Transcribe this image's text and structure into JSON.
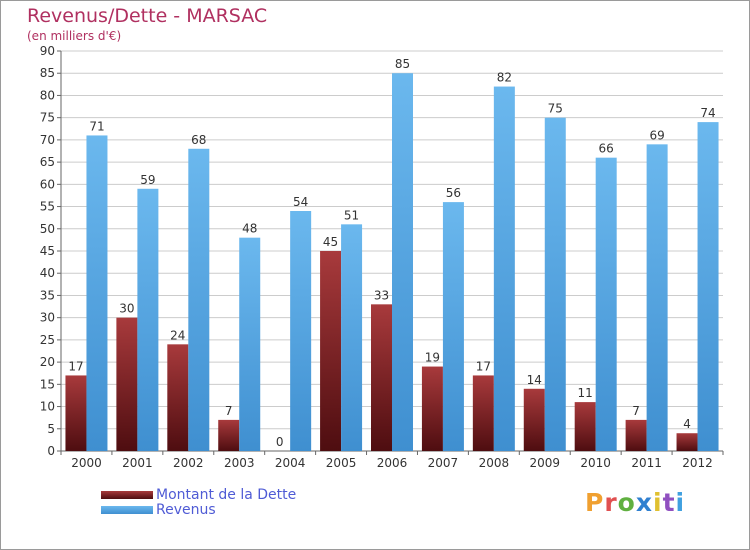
{
  "title": "Revenus/Dette - MARSAC",
  "subtitle": "(en milliers d'€)",
  "logo": {
    "text": "Proxiti",
    "letter_colors": [
      "#f0a030",
      "#e05050",
      "#60b040",
      "#3080d0",
      "#e0c030",
      "#9050c0",
      "#40a0e0"
    ]
  },
  "colors": {
    "dette": "#7a1e20",
    "revenus": "#55a8e6",
    "grid": "#cccccc",
    "axis": "#666666",
    "title": "#b03060"
  },
  "chart_data": {
    "type": "bar",
    "title": "Revenus/Dette - MARSAC",
    "subtitle": "(en milliers d'€)",
    "categories": [
      "2000",
      "2001",
      "2002",
      "2003",
      "2004",
      "2005",
      "2006",
      "2007",
      "2008",
      "2009",
      "2010",
      "2011",
      "2012"
    ],
    "series": [
      {
        "name": "Montant de la Dette",
        "color": "#7a1e20",
        "values": [
          17,
          30,
          24,
          7,
          0,
          45,
          33,
          19,
          17,
          14,
          11,
          7,
          4
        ]
      },
      {
        "name": "Revenus",
        "color": "#55a8e6",
        "values": [
          71,
          59,
          68,
          48,
          54,
          51,
          85,
          56,
          82,
          75,
          66,
          69,
          74
        ]
      }
    ],
    "ylim": [
      0,
      90
    ],
    "ytick_step": 5,
    "yticks": [
      "0",
      "5",
      "10",
      "15",
      "20",
      "25",
      "30",
      "35",
      "40",
      "45",
      "50",
      "55",
      "60",
      "65",
      "70",
      "75",
      "80",
      "85",
      "90"
    ],
    "grid": true,
    "legend_position": "bottom-left",
    "data_labels": true
  }
}
